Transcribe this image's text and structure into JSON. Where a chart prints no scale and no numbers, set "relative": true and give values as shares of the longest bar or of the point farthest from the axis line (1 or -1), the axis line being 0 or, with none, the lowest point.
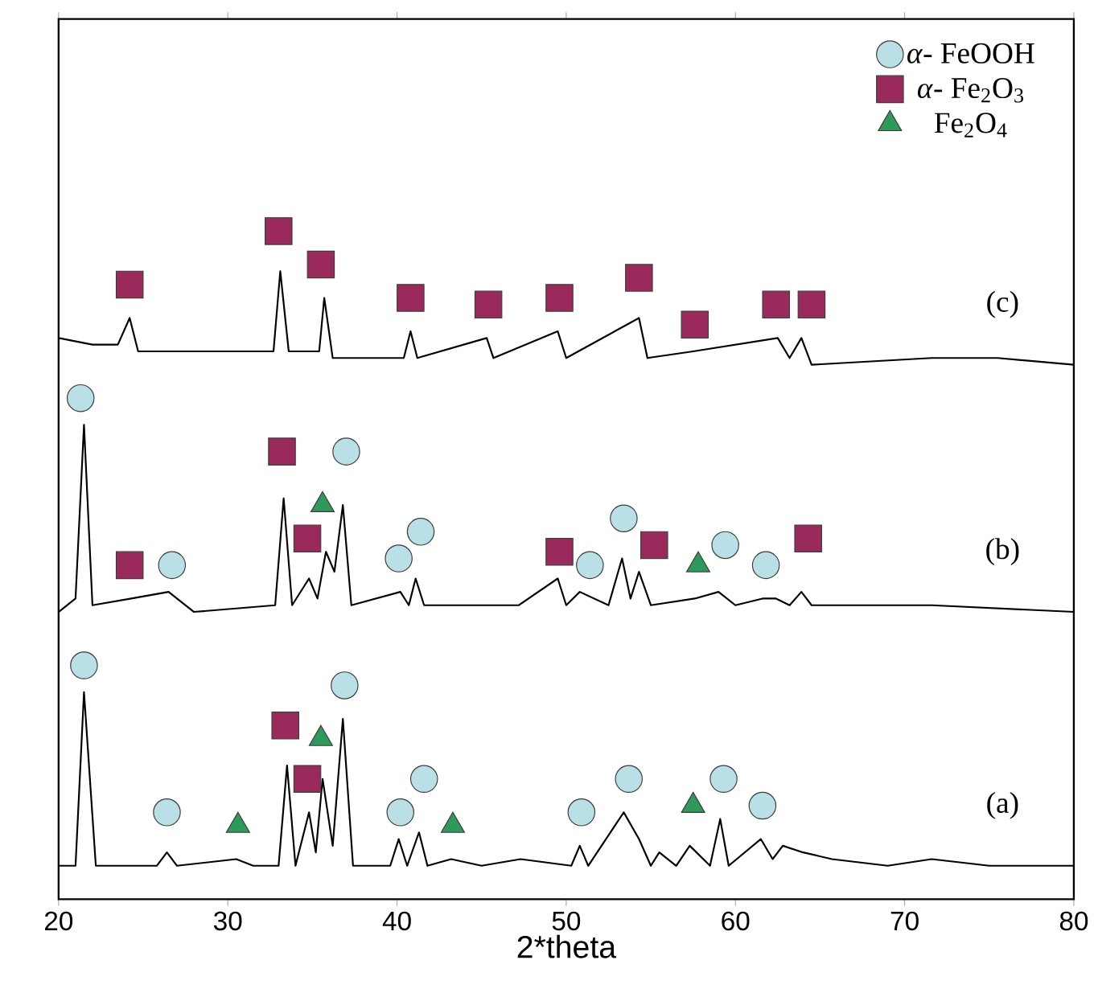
{
  "chart_data": {
    "type": "line",
    "relative": true,
    "xlabel": "2*theta",
    "xlim": [
      20,
      80
    ],
    "xticks": [
      20,
      30,
      40,
      50,
      60,
      70,
      80
    ],
    "legend": "top right",
    "grid": false,
    "series": [
      {
        "color": "#000000",
        "x": [
          20,
          21.0,
          21.5,
          22.2,
          25.8,
          26.4,
          27,
          30.5,
          31.5,
          33,
          33.5,
          34.0,
          34.8,
          35.2,
          35.6,
          36.2,
          36.8,
          37.4,
          39.6,
          40.1,
          40.6,
          41.3,
          41.8,
          43.2,
          45,
          47.3,
          50.3,
          50.8,
          51.3,
          53.4,
          54.3,
          55.0,
          55.5,
          56.5,
          57.3,
          58.5,
          59.1,
          59.6,
          61.5,
          62.2,
          62.8,
          64,
          65.7,
          69,
          71.6,
          75,
          80
        ],
        "values": [
          0.05,
          0.05,
          0.31,
          0.05,
          0.05,
          0.07,
          0.05,
          0.06,
          0.05,
          0.05,
          0.2,
          0.05,
          0.13,
          0.07,
          0.18,
          0.08,
          0.27,
          0.05,
          0.05,
          0.09,
          0.05,
          0.1,
          0.05,
          0.06,
          0.05,
          0.06,
          0.05,
          0.08,
          0.05,
          0.13,
          0.09,
          0.05,
          0.07,
          0.05,
          0.08,
          0.05,
          0.12,
          0.05,
          0.09,
          0.06,
          0.08,
          0.07,
          0.06,
          0.05,
          0.06,
          0.05,
          0.05
        ]
      },
      {
        "color": "#000000",
        "x": [
          20,
          21.0,
          21.5,
          22.0,
          24.3,
          26.5,
          28,
          32.8,
          33.3,
          33.8,
          34.8,
          35.3,
          35.8,
          36.3,
          36.8,
          37.3,
          40.2,
          40.7,
          41.1,
          41.6,
          47.2,
          49.5,
          50,
          50.8,
          52.5,
          53.3,
          53.8,
          54.3,
          55,
          57.6,
          59,
          60,
          61.6,
          62.4,
          63.2,
          63.9,
          64.5,
          71.6,
          80
        ],
        "values": [
          0.43,
          0.45,
          0.71,
          0.44,
          0.45,
          0.46,
          0.43,
          0.44,
          0.6,
          0.44,
          0.48,
          0.45,
          0.52,
          0.49,
          0.59,
          0.44,
          0.46,
          0.44,
          0.48,
          0.44,
          0.44,
          0.48,
          0.44,
          0.46,
          0.44,
          0.51,
          0.45,
          0.49,
          0.44,
          0.45,
          0.46,
          0.44,
          0.45,
          0.45,
          0.44,
          0.46,
          0.44,
          0.44,
          0.43
        ]
      },
      {
        "color": "#000000",
        "x": [
          20,
          22,
          23.5,
          24.2,
          24.7,
          28,
          32.7,
          33.1,
          33.6,
          35.4,
          35.7,
          36.2,
          40.4,
          40.8,
          41.2,
          45.3,
          45.7,
          49.5,
          50,
          54.3,
          54.8,
          57.5,
          62.5,
          63.2,
          63.9,
          64.5,
          71.6,
          75.5,
          80
        ],
        "values": [
          0.84,
          0.83,
          0.83,
          0.87,
          0.82,
          0.82,
          0.82,
          0.94,
          0.82,
          0.82,
          0.9,
          0.81,
          0.81,
          0.85,
          0.81,
          0.84,
          0.81,
          0.85,
          0.81,
          0.87,
          0.81,
          0.82,
          0.84,
          0.81,
          0.84,
          0.8,
          0.81,
          0.81,
          0.8
        ]
      },
      {
        "type": "scatter",
        "name": "*α*- FeOOH",
        "marker": "circle",
        "color": "#b9e0e6",
        "x": [
          21.5,
          26.4,
          36.9,
          40.2,
          41.6,
          50.9,
          53.7,
          59.3,
          61.6,
          21.3,
          26.7,
          37.0,
          40.1,
          41.4,
          51.4,
          53.4,
          59.4,
          61.8
        ],
        "values": [
          0.35,
          0.13,
          0.32,
          0.13,
          0.18,
          0.13,
          0.18,
          0.18,
          0.14,
          0.75,
          0.5,
          0.67,
          0.51,
          0.55,
          0.5,
          0.57,
          0.53,
          0.5
        ]
      },
      {
        "type": "scatter",
        "name": "*α*- Fe$_{2}$O$_{3}$",
        "marker": "square",
        "color": "#9b2a5c",
        "x": [
          33.4,
          34.7,
          24.2,
          33.2,
          34.7,
          49.6,
          55.2,
          64.3,
          24.2,
          33.0,
          35.5,
          40.8,
          45.4,
          49.6,
          54.3,
          57.6,
          62.4,
          64.5
        ],
        "values": [
          0.26,
          0.18,
          0.5,
          0.67,
          0.54,
          0.52,
          0.53,
          0.54,
          0.92,
          1.0,
          0.95,
          0.9,
          0.89,
          0.9,
          0.93,
          0.86,
          0.89,
          0.89
        ]
      },
      {
        "type": "scatter",
        "name": "Fe$_{2}$O$_{4}$",
        "marker": "triangle",
        "color": "#2e9a5a",
        "x": [
          30.6,
          35.5,
          43.3,
          57.5,
          35.6,
          57.8
        ],
        "values": [
          0.11,
          0.24,
          0.11,
          0.14,
          0.59,
          0.5
        ]
      }
    ],
    "annotations": [
      "(a)",
      "(b)",
      "(c)"
    ]
  }
}
